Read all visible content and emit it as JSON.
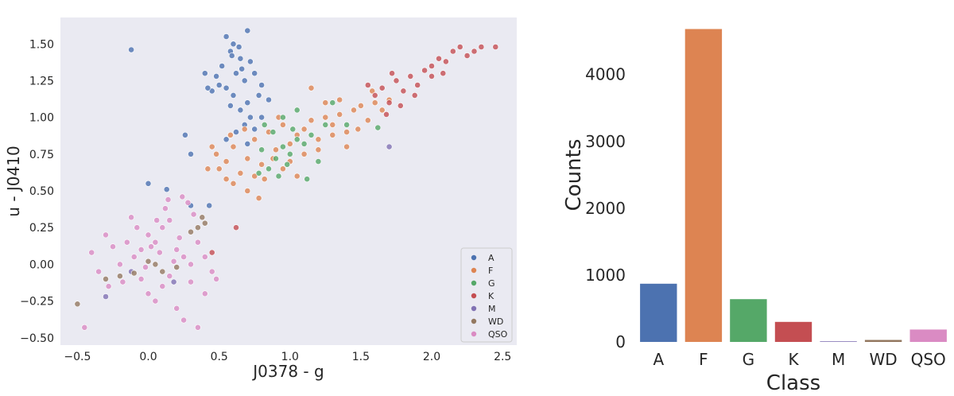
{
  "chart_data": [
    {
      "type": "scatter",
      "xlabel": "J0378 - g",
      "ylabel": "u - J0410",
      "xlim": [
        -0.62,
        2.6
      ],
      "ylim": [
        -0.55,
        1.68
      ],
      "xticks": [
        -0.5,
        0.0,
        0.5,
        1.0,
        1.5,
        2.0,
        2.5
      ],
      "xtick_labels": [
        "−0.5",
        "0.0",
        "0.5",
        "1.0",
        "1.5",
        "2.0",
        "2.5"
      ],
      "yticks": [
        -0.5,
        -0.25,
        0.0,
        0.25,
        0.5,
        0.75,
        1.0,
        1.25,
        1.5
      ],
      "ytick_labels": [
        "−0.50",
        "−0.25",
        "0.00",
        "0.25",
        "0.50",
        "0.75",
        "1.00",
        "1.25",
        "1.50"
      ],
      "grid": false,
      "legend_position": "lower-right",
      "series": [
        {
          "name": "A",
          "color": "#4c72b0",
          "points": [
            [
              0.55,
              1.55
            ],
            [
              0.6,
              1.5
            ],
            [
              0.7,
              1.59
            ],
            [
              0.58,
              1.45
            ],
            [
              0.65,
              1.4
            ],
            [
              0.52,
              1.35
            ],
            [
              0.62,
              1.3
            ],
            [
              0.72,
              1.38
            ],
            [
              0.48,
              1.28
            ],
            [
              0.68,
              1.25
            ],
            [
              0.75,
              1.3
            ],
            [
              0.55,
              1.2
            ],
            [
              0.8,
              1.22
            ],
            [
              0.45,
              1.18
            ],
            [
              0.6,
              1.15
            ],
            [
              0.7,
              1.1
            ],
            [
              0.78,
              1.15
            ],
            [
              0.85,
              1.12
            ],
            [
              0.65,
              1.05
            ],
            [
              0.72,
              1.0
            ],
            [
              0.58,
              1.08
            ],
            [
              0.68,
              0.95
            ],
            [
              0.75,
              0.92
            ],
            [
              0.62,
              0.9
            ],
            [
              0.55,
              0.85
            ],
            [
              0.7,
              0.82
            ],
            [
              0.8,
              1.0
            ],
            [
              0.5,
              1.22
            ],
            [
              0.42,
              1.2
            ],
            [
              0.4,
              1.3
            ],
            [
              -0.12,
              1.46
            ],
            [
              0.26,
              0.88
            ],
            [
              0.3,
              0.75
            ],
            [
              0.0,
              0.55
            ],
            [
              0.13,
              0.51
            ],
            [
              0.43,
              0.4
            ],
            [
              0.3,
              0.4
            ],
            [
              0.64,
              1.48
            ],
            [
              0.59,
              1.42
            ],
            [
              0.66,
              1.33
            ]
          ]
        },
        {
          "name": "F",
          "color": "#dd8452",
          "points": [
            [
              0.48,
              0.75
            ],
            [
              0.55,
              0.7
            ],
            [
              0.6,
              0.8
            ],
            [
              0.65,
              0.62
            ],
            [
              0.7,
              0.72
            ],
            [
              0.75,
              0.85
            ],
            [
              0.8,
              0.68
            ],
            [
              0.85,
              0.9
            ],
            [
              0.9,
              0.78
            ],
            [
              0.95,
              0.95
            ],
            [
              1.0,
              0.82
            ],
            [
              1.05,
              0.88
            ],
            [
              1.1,
              0.92
            ],
            [
              1.15,
              0.98
            ],
            [
              1.2,
              0.85
            ],
            [
              1.25,
              1.0
            ],
            [
              1.3,
              0.95
            ],
            [
              1.35,
              1.02
            ],
            [
              1.4,
              0.9
            ],
            [
              1.45,
              1.05
            ],
            [
              1.5,
              1.08
            ],
            [
              1.55,
              0.98
            ],
            [
              1.6,
              1.1
            ],
            [
              1.65,
              1.05
            ],
            [
              1.7,
              1.12
            ],
            [
              0.6,
              0.55
            ],
            [
              0.7,
              0.5
            ],
            [
              0.75,
              0.6
            ],
            [
              0.78,
              0.45
            ],
            [
              0.55,
              0.58
            ],
            [
              0.5,
              0.65
            ],
            [
              1.0,
              0.7
            ],
            [
              1.1,
              0.75
            ],
            [
              1.2,
              0.78
            ],
            [
              1.25,
              1.1
            ],
            [
              1.35,
              1.12
            ],
            [
              0.88,
              0.72
            ],
            [
              0.95,
              0.65
            ],
            [
              1.05,
              0.6
            ],
            [
              0.82,
              0.58
            ],
            [
              0.68,
              0.92
            ],
            [
              0.58,
              0.88
            ],
            [
              1.4,
              0.8
            ],
            [
              1.48,
              0.92
            ],
            [
              1.58,
              1.18
            ],
            [
              0.42,
              0.65
            ],
            [
              0.45,
              0.8
            ],
            [
              1.15,
              1.2
            ],
            [
              0.92,
              1.0
            ],
            [
              1.3,
              0.88
            ]
          ]
        },
        {
          "name": "G",
          "color": "#55a868",
          "points": [
            [
              0.85,
              0.65
            ],
            [
              0.9,
              0.72
            ],
            [
              0.95,
              0.8
            ],
            [
              1.0,
              0.75
            ],
            [
              1.05,
              0.85
            ],
            [
              0.88,
              0.9
            ],
            [
              0.92,
              0.6
            ],
            [
              0.98,
              0.68
            ],
            [
              1.02,
              0.92
            ],
            [
              1.1,
              0.82
            ],
            [
              1.15,
              0.88
            ],
            [
              0.8,
              0.78
            ],
            [
              0.82,
              0.95
            ],
            [
              1.2,
              0.7
            ],
            [
              1.25,
              0.95
            ],
            [
              1.3,
              1.1
            ],
            [
              0.95,
              1.0
            ],
            [
              1.05,
              1.05
            ],
            [
              1.12,
              0.58
            ],
            [
              0.78,
              0.62
            ],
            [
              1.62,
              0.93
            ],
            [
              1.4,
              0.95
            ]
          ]
        },
        {
          "name": "K",
          "color": "#c44e52",
          "points": [
            [
              1.6,
              1.15
            ],
            [
              1.65,
              1.2
            ],
            [
              1.7,
              1.1
            ],
            [
              1.75,
              1.25
            ],
            [
              1.8,
              1.18
            ],
            [
              1.85,
              1.28
            ],
            [
              1.9,
              1.22
            ],
            [
              1.95,
              1.32
            ],
            [
              2.0,
              1.35
            ],
            [
              2.05,
              1.4
            ],
            [
              2.1,
              1.38
            ],
            [
              2.15,
              1.45
            ],
            [
              2.2,
              1.48
            ],
            [
              2.25,
              1.42
            ],
            [
              2.3,
              1.45
            ],
            [
              2.35,
              1.48
            ],
            [
              2.45,
              1.48
            ],
            [
              1.72,
              1.3
            ],
            [
              1.78,
              1.08
            ],
            [
              1.88,
              1.15
            ],
            [
              2.0,
              1.28
            ],
            [
              1.55,
              1.22
            ],
            [
              1.68,
              1.02
            ],
            [
              2.08,
              1.3
            ],
            [
              0.62,
              0.25
            ],
            [
              0.45,
              0.08
            ]
          ]
        },
        {
          "name": "M",
          "color": "#8172b3",
          "points": [
            [
              -0.3,
              -0.22
            ],
            [
              1.7,
              0.8
            ],
            [
              -0.12,
              -0.05
            ],
            [
              0.18,
              -0.12
            ]
          ]
        },
        {
          "name": "WD",
          "color": "#937860",
          "points": [
            [
              -0.5,
              -0.27
            ],
            [
              -0.3,
              -0.1
            ],
            [
              -0.2,
              -0.08
            ],
            [
              -0.1,
              -0.06
            ],
            [
              0.05,
              0.0
            ],
            [
              0.1,
              -0.05
            ],
            [
              0.2,
              -0.02
            ],
            [
              0.3,
              0.22
            ],
            [
              0.35,
              0.25
            ],
            [
              0.4,
              0.28
            ],
            [
              0.38,
              0.32
            ],
            [
              0.0,
              0.02
            ]
          ]
        },
        {
          "name": "QSO",
          "color": "#da8bc3",
          "points": [
            [
              -0.45,
              -0.43
            ],
            [
              -0.4,
              0.08
            ],
            [
              -0.35,
              -0.05
            ],
            [
              -0.28,
              -0.15
            ],
            [
              -0.2,
              0.0
            ],
            [
              -0.15,
              0.15
            ],
            [
              -0.1,
              0.05
            ],
            [
              -0.05,
              0.1
            ],
            [
              0.0,
              0.2
            ],
            [
              0.05,
              0.15
            ],
            [
              0.1,
              0.25
            ],
            [
              0.15,
              0.3
            ],
            [
              0.2,
              0.1
            ],
            [
              0.25,
              0.05
            ],
            [
              0.3,
              0.0
            ],
            [
              0.35,
              0.15
            ],
            [
              0.4,
              0.05
            ],
            [
              0.45,
              -0.05
            ],
            [
              0.1,
              -0.15
            ],
            [
              0.05,
              -0.25
            ],
            [
              0.0,
              -0.2
            ],
            [
              -0.05,
              -0.1
            ],
            [
              0.2,
              -0.3
            ],
            [
              0.25,
              -0.38
            ],
            [
              0.35,
              -0.43
            ],
            [
              0.28,
              0.42
            ],
            [
              0.12,
              0.38
            ],
            [
              -0.08,
              0.25
            ],
            [
              0.18,
              0.02
            ],
            [
              0.08,
              0.08
            ],
            [
              0.02,
              0.12
            ],
            [
              -0.02,
              -0.02
            ],
            [
              0.22,
              0.18
            ],
            [
              0.3,
              -0.12
            ],
            [
              0.15,
              -0.08
            ],
            [
              -0.12,
              0.32
            ],
            [
              0.4,
              -0.2
            ],
            [
              0.48,
              -0.1
            ],
            [
              -0.18,
              -0.12
            ],
            [
              0.06,
              0.3
            ],
            [
              0.14,
              0.44
            ],
            [
              0.24,
              0.46
            ],
            [
              -0.25,
              0.12
            ],
            [
              -0.3,
              0.2
            ],
            [
              0.32,
              0.34
            ]
          ]
        }
      ]
    },
    {
      "type": "bar",
      "xlabel": "Class",
      "ylabel": "Counts",
      "categories": [
        "A",
        "F",
        "G",
        "K",
        "M",
        "WD",
        "QSO"
      ],
      "values": [
        870,
        4680,
        640,
        300,
        10,
        30,
        185
      ],
      "colors": [
        "#4c72b0",
        "#dd8452",
        "#55a868",
        "#c44e52",
        "#8172b3",
        "#937860",
        "#da8bc3"
      ],
      "ylim": [
        0,
        4900
      ],
      "yticks": [
        0,
        1000,
        2000,
        3000,
        4000
      ],
      "ytick_labels": [
        "0",
        "1000",
        "2000",
        "3000",
        "4000"
      ],
      "grid": false
    }
  ]
}
